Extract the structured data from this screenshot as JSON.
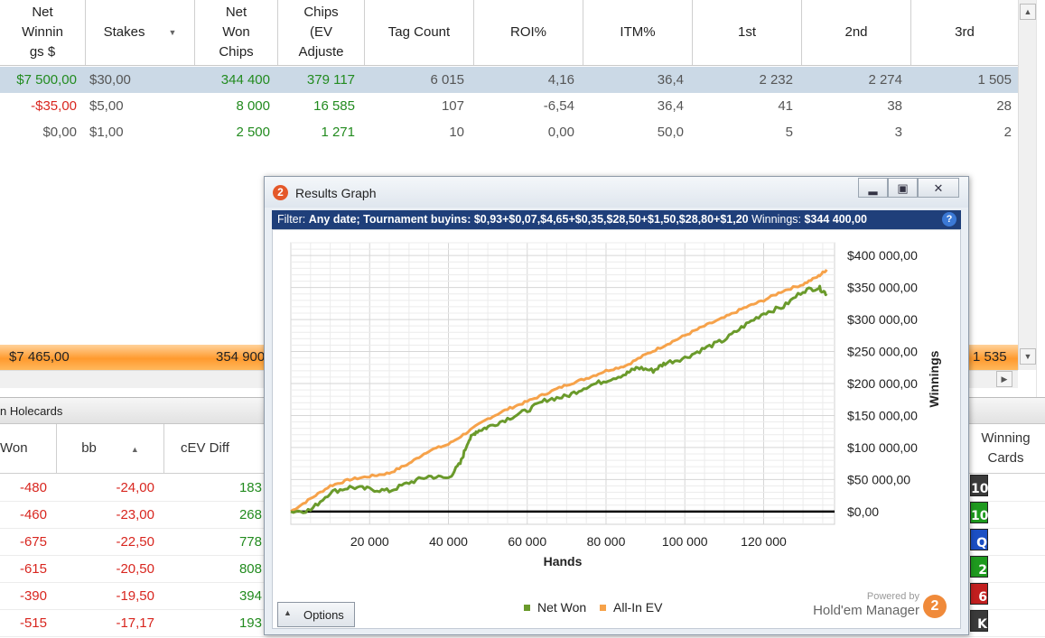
{
  "stats_table": {
    "columns": [
      "Net\nWinnin\ngs $",
      "Stakes",
      "Net\nWon\nChips",
      "Chips\n(EV\nAdjuste",
      "Tag Count",
      "ROI%",
      "ITM%",
      "1st",
      "2nd",
      "3rd"
    ],
    "rows": [
      {
        "net_winnings": "$7 500,00",
        "stakes": "$30,00",
        "net_won_chips": "344 400",
        "chips_ev": "379 117",
        "tag_count": "6 015",
        "roi": "4,16",
        "itm": "36,4",
        "first": "2 232",
        "second": "2 274",
        "third": "1 505"
      },
      {
        "net_winnings": "-$35,00",
        "stakes": "$5,00",
        "net_won_chips": "8 000",
        "chips_ev": "16 585",
        "tag_count": "107",
        "roi": "-6,54",
        "itm": "36,4",
        "first": "41",
        "second": "38",
        "third": "28"
      },
      {
        "net_winnings": "$0,00",
        "stakes": "$1,00",
        "net_won_chips": "2 500",
        "chips_ev": "1 271",
        "tag_count": "10",
        "roi": "0,00",
        "itm": "50,0",
        "first": "5",
        "second": "3",
        "third": "2"
      }
    ],
    "totals": {
      "net_winnings": "$7 465,00",
      "net_won_chips": "354 900",
      "third": "1 535"
    }
  },
  "holecards": {
    "title": "n Holecards",
    "columns": {
      "won": "Won",
      "bb": "bb",
      "cev": "cEV Diff",
      "winning_cards": "Winning\nCards"
    },
    "rows": [
      {
        "won": "-480",
        "bb": "-24,00",
        "cev": "183",
        "card": "10",
        "card_color": "#3a3a3a"
      },
      {
        "won": "-460",
        "bb": "-23,00",
        "cev": "268",
        "card": "10",
        "card_color": "#1e9a1e"
      },
      {
        "won": "-675",
        "bb": "-22,50",
        "cev": "778",
        "card": "Q",
        "card_color": "#1b4fc4"
      },
      {
        "won": "-615",
        "bb": "-20,50",
        "cev": "808",
        "card": "2",
        "card_color": "#1e9a1e"
      },
      {
        "won": "-390",
        "bb": "-19,50",
        "cev": "394",
        "card": "6",
        "card_color": "#c21f1f"
      },
      {
        "won": "-515",
        "bb": "-17,17",
        "cev": "193",
        "card": "K",
        "card_color": "#3a3a3a"
      }
    ]
  },
  "graph_window": {
    "title": "Results Graph",
    "filter_label": "Filter:",
    "filter_text": "Any date; Tournament buyins: $0,93+$0,07,$4,65+$0,35,$28,50+$1,50,$28,80+$1,20",
    "winnings_label": "Winnings:",
    "winnings_value": "$344 400,00",
    "options_label": "Options",
    "powered_by": "Powered by",
    "brand": "Hold'em Manager"
  },
  "colors": {
    "net_won": "#6a9a2b",
    "all_in_ev": "#f6a24a",
    "filter_bar": "#1f3f7a",
    "positive": "#228b1f",
    "negative": "#d8261f"
  },
  "chart_data": {
    "type": "line",
    "xlabel": "Hands",
    "ylabel": "Winnings",
    "xlim": [
      0,
      138000
    ],
    "ylim": [
      -20000,
      420000
    ],
    "x_ticks": [
      "20 000",
      "40 000",
      "60 000",
      "80 000",
      "100 000",
      "120 000"
    ],
    "x_tick_values": [
      20000,
      40000,
      60000,
      80000,
      100000,
      120000
    ],
    "y_ticks": [
      "$0,00",
      "$50 000,00",
      "$100 000,00",
      "$150 000,00",
      "$200 000,00",
      "$250 000,00",
      "$300 000,00",
      "$350 000,00",
      "$400 000,00"
    ],
    "y_tick_values": [
      0,
      50000,
      100000,
      150000,
      200000,
      250000,
      300000,
      350000,
      400000
    ],
    "grid": true,
    "legend": "bottom",
    "series": [
      {
        "name": "Net Won",
        "x": [
          0,
          5000,
          10000,
          15000,
          20000,
          25000,
          30000,
          35000,
          40000,
          43000,
          45000,
          47000,
          50000,
          55000,
          60000,
          65000,
          70000,
          75000,
          80000,
          85000,
          88000,
          92000,
          95000,
          100000,
          105000,
          110000,
          115000,
          120000,
          125000,
          130000,
          134000,
          136000
        ],
        "y": [
          0,
          2000,
          30000,
          38000,
          35000,
          32000,
          45000,
          55000,
          52000,
          75000,
          110000,
          125000,
          132000,
          145000,
          158000,
          175000,
          180000,
          195000,
          205000,
          215000,
          225000,
          220000,
          232000,
          240000,
          255000,
          268000,
          290000,
          310000,
          320000,
          345000,
          350000,
          340000
        ]
      },
      {
        "name": "All-In EV",
        "x": [
          0,
          5000,
          10000,
          15000,
          20000,
          25000,
          30000,
          35000,
          40000,
          45000,
          50000,
          55000,
          60000,
          65000,
          70000,
          75000,
          80000,
          85000,
          90000,
          95000,
          100000,
          105000,
          110000,
          115000,
          120000,
          125000,
          130000,
          134000,
          136000
        ],
        "y": [
          0,
          20000,
          40000,
          50000,
          55000,
          60000,
          75000,
          95000,
          105000,
          125000,
          145000,
          160000,
          172000,
          185000,
          198000,
          208000,
          220000,
          228000,
          245000,
          260000,
          275000,
          290000,
          303000,
          318000,
          330000,
          345000,
          355000,
          368000,
          378000
        ]
      }
    ]
  }
}
